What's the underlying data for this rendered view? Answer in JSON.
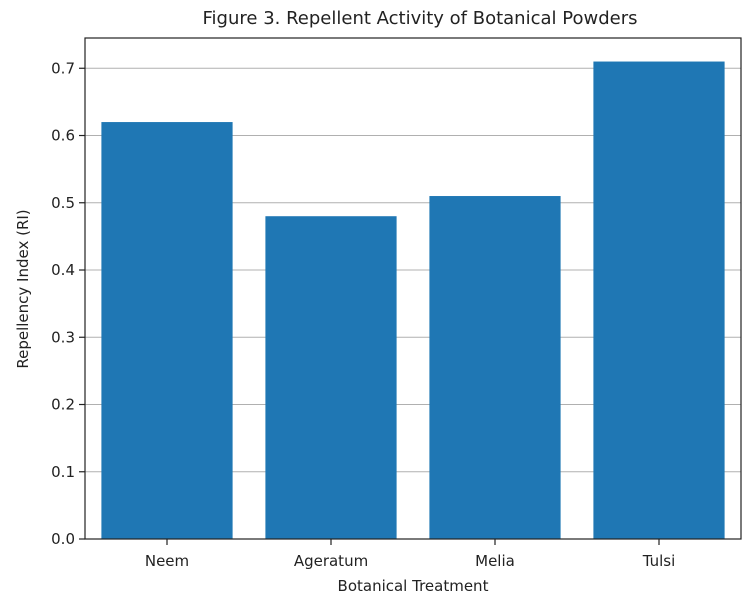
{
  "chart_data": {
    "type": "bar",
    "title": "Figure 3. Repellent Activity of Botanical Powders",
    "xlabel": "Botanical Treatment",
    "ylabel": "Repellency Index (RI)",
    "categories": [
      "Neem",
      "Ageratum",
      "Melia",
      "Tulsi"
    ],
    "values": [
      0.62,
      0.48,
      0.51,
      0.71
    ],
    "ylim": [
      0,
      0.745
    ],
    "yticks": [
      "0.0",
      "0.1",
      "0.2",
      "0.3",
      "0.4",
      "0.5",
      "0.6",
      "0.7"
    ],
    "grid": "horizontal",
    "bar_color": "#1f77b4"
  }
}
